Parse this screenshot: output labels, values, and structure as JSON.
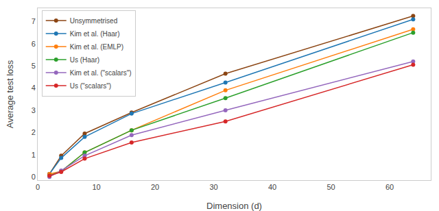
{
  "chart_data": {
    "type": "line",
    "x": [
      2,
      4,
      8,
      16,
      32,
      64
    ],
    "series": [
      {
        "name": "Unsymmetrised",
        "color": "#8B4513",
        "values": [
          0.13,
          0.95,
          1.95,
          2.9,
          4.65,
          7.25
        ]
      },
      {
        "name": "Kim et al. (Haar)",
        "color": "#1f77b4",
        "values": [
          0.13,
          0.85,
          1.8,
          2.85,
          4.25,
          7.1
        ]
      },
      {
        "name": "Kim et al. (EMLP)",
        "color": "#ff7f0e",
        "values": [
          0.13,
          0.25,
          1.1,
          2.1,
          3.9,
          6.65
        ]
      },
      {
        "name": "Us (Haar)",
        "color": "#2ca02c",
        "values": [
          0.05,
          0.25,
          1.1,
          2.1,
          3.55,
          6.5
        ]
      },
      {
        "name": "Kim et al. (\"scalars\")",
        "color": "#9467bd",
        "values": [
          0.0,
          0.28,
          0.95,
          1.88,
          3.0,
          5.2
        ]
      },
      {
        "name": "Us (\"scalars\")",
        "color": "#d62728",
        "values": [
          0.05,
          0.22,
          0.82,
          1.55,
          2.5,
          5.05
        ]
      }
    ],
    "xlabel": "Dimension (d)",
    "ylabel": "Average test loss",
    "xlim": [
      0,
      67
    ],
    "ylim": [
      -0.15,
      7.6
    ],
    "xticks": [
      0,
      10,
      20,
      30,
      40,
      50,
      60
    ],
    "yticks": [
      0,
      1,
      2,
      3,
      4,
      5,
      6,
      7
    ],
    "legend": "upper left",
    "grid": false,
    "marker": "circle"
  }
}
